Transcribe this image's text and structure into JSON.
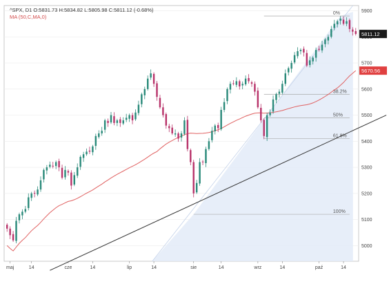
{
  "header": {
    "line1": "^SPX, D1  O:5831.73  H:5834.82  L:5805.98  C:5811.12  (-0.68%)",
    "line2": "MA (50,C,MA,0)"
  },
  "colors": {
    "bull": "#2a8a7a",
    "bear": "#b8336a",
    "ma": "#e06060",
    "trendline": "#333333",
    "fib_fill": "#e3ebf8",
    "fib_line": "#aaaaaa",
    "grid": "#ececec",
    "price_label_bg": "#1a1a1a",
    "ma_label_bg": "#e04040"
  },
  "chart_data": {
    "type": "candlestick",
    "title": "^SPX, D1",
    "yticks": [
      5000,
      5100,
      5200,
      5300,
      5400,
      5500,
      5600,
      5700,
      5800,
      5900
    ],
    "ylim": [
      4940,
      5920
    ],
    "xticks": [
      {
        "label": "maj",
        "index": 1
      },
      {
        "label": "14",
        "index": 8
      },
      {
        "label": "cze",
        "index": 20
      },
      {
        "label": "14",
        "index": 28
      },
      {
        "label": "lip",
        "index": 40
      },
      {
        "label": "14",
        "index": 48
      },
      {
        "label": "sie",
        "index": 61
      },
      {
        "label": "14",
        "index": 70
      },
      {
        "label": "wrz",
        "index": 82
      },
      {
        "label": "14",
        "index": 90
      },
      {
        "label": "paź",
        "index": 102
      },
      {
        "label": "14",
        "index": 110
      }
    ],
    "closes": [
      5065,
      5040,
      5020,
      5095,
      5120,
      5130,
      5140,
      5185,
      5200,
      5200,
      5215,
      5250,
      5290,
      5300,
      5310,
      5305,
      5320,
      5300,
      5260,
      5290,
      5280,
      5230,
      5270,
      5300,
      5340,
      5350,
      5360,
      5360,
      5380,
      5420,
      5430,
      5440,
      5480,
      5470,
      5500,
      5470,
      5480,
      5470,
      5480,
      5490,
      5500,
      5480,
      5510,
      5540,
      5580,
      5600,
      5640,
      5660,
      5620,
      5570,
      5530,
      5500,
      5460,
      5450,
      5430,
      5430,
      5410,
      5430,
      5480,
      5370,
      5320,
      5200,
      5240,
      5320,
      5320,
      5370,
      5400,
      5440,
      5460,
      5450,
      5520,
      5550,
      5600,
      5620,
      5620,
      5630,
      5610,
      5620,
      5640,
      5630,
      5620,
      5590,
      5530,
      5480,
      5420,
      5500,
      5510,
      5560,
      5580,
      5590,
      5620,
      5660,
      5680,
      5700,
      5730,
      5745,
      5750,
      5740,
      5690,
      5710,
      5720,
      5750,
      5750,
      5770,
      5790,
      5800,
      5830,
      5850,
      5860,
      5870,
      5850,
      5860,
      5830,
      5820,
      5811
    ],
    "price_label": "5811.12",
    "ma": {
      "name": "MA (50,C,MA,0)",
      "last_value": 5670.56,
      "label": "5670.56"
    },
    "trendline": {
      "from": {
        "index": 14,
        "price": 4905
      },
      "to": {
        "index": 124,
        "price": 5500
      }
    },
    "fibonacci": {
      "anchor_low": {
        "index": 61,
        "price": 5120
      },
      "anchor_high": {
        "index": 109,
        "price": 5880
      },
      "levels": [
        {
          "label": "100%",
          "price": 5120
        },
        {
          "label": "61.8%",
          "price": 5410
        },
        {
          "label": "50%",
          "price": 5490
        },
        {
          "label": "38.2%",
          "price": 5580
        },
        {
          "label": "0%",
          "price": 5880
        }
      ]
    }
  }
}
